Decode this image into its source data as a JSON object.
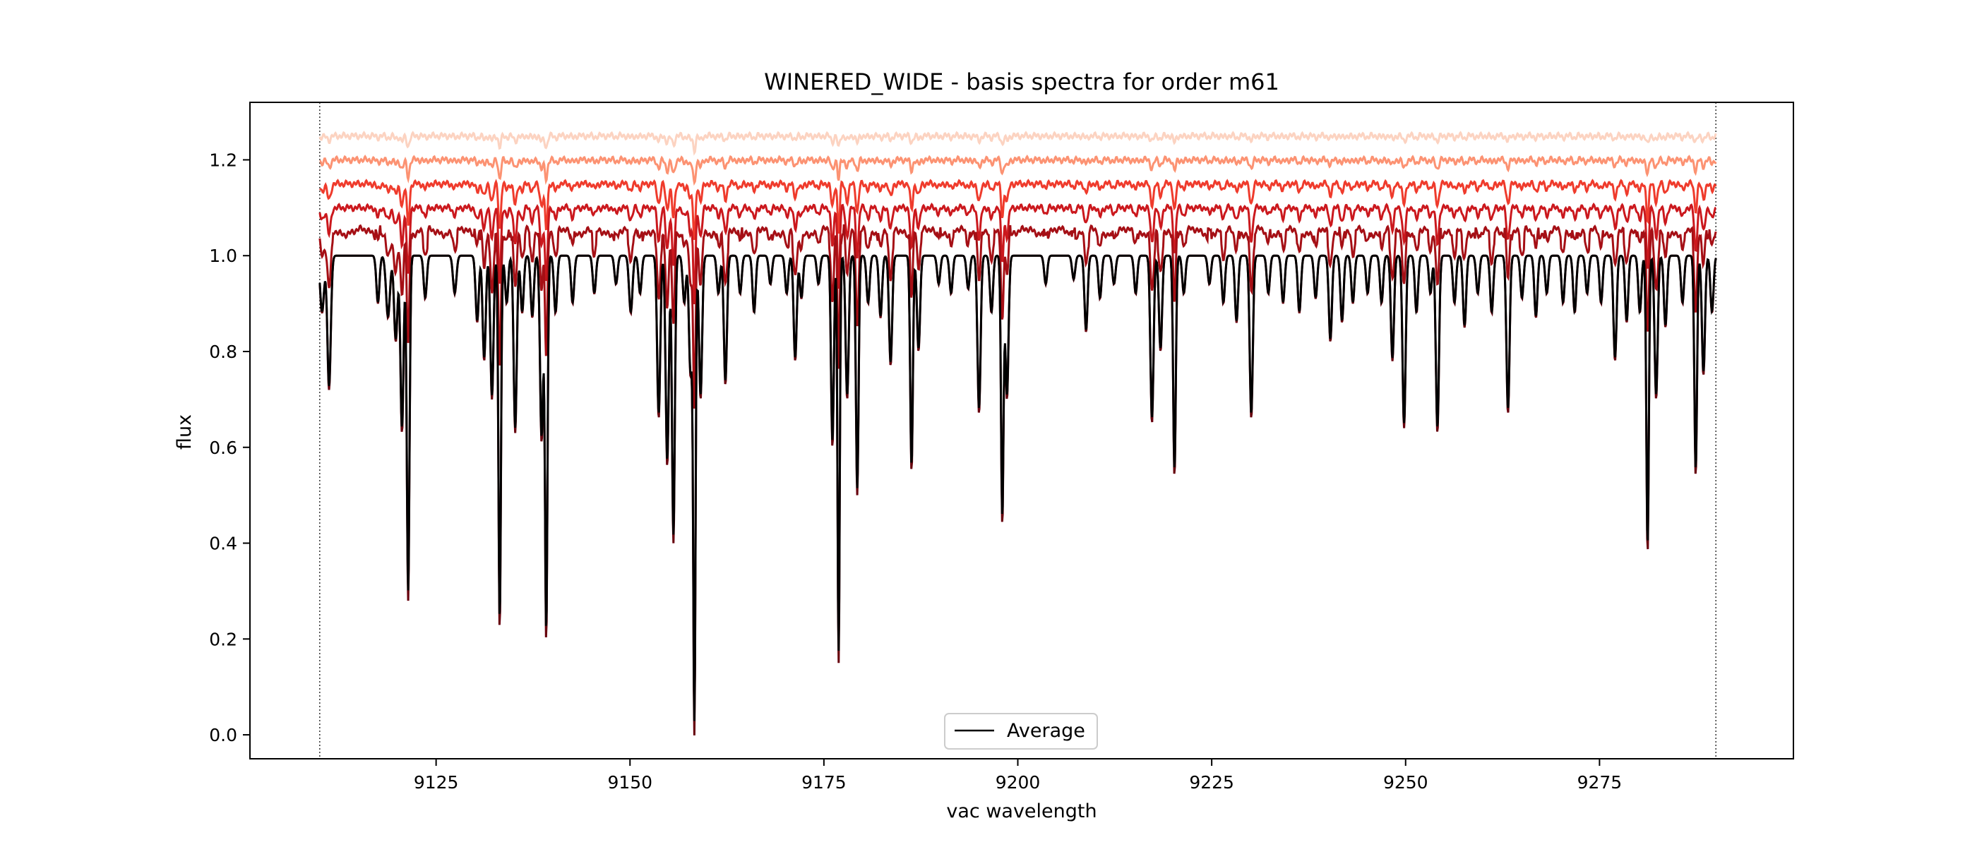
{
  "chart_data": {
    "type": "line",
    "title": "WINERED_WIDE - basis spectra for order m61",
    "xlabel": "vac wavelength",
    "ylabel": "flux",
    "xlim": [
      9101,
      9300
    ],
    "ylim": [
      -0.05,
      1.32
    ],
    "x_ticks": [
      9125,
      9150,
      9175,
      9200,
      9225,
      9250,
      9275
    ],
    "y_ticks": [
      0.0,
      0.2,
      0.4,
      0.6,
      0.8,
      1.0,
      1.2
    ],
    "x_tick_labels": [
      "9125",
      "9150",
      "9175",
      "9200",
      "9225",
      "9250",
      "9275"
    ],
    "y_tick_labels": [
      "0.0",
      "0.2",
      "0.4",
      "0.6",
      "0.8",
      "1.0",
      "1.2"
    ],
    "vertical_markers": [
      9110,
      9290
    ],
    "legend": {
      "placement": "lower center",
      "entries": [
        "Average"
      ]
    },
    "grid": false,
    "colormap": "Reds",
    "basis_offsets": [
      0.0,
      0.05,
      0.1,
      0.15,
      0.2,
      0.25
    ],
    "basis_colors": [
      "#67000d",
      "#a50f15",
      "#cb181d",
      "#ef3b2c",
      "#fc9272",
      "#fcd3c1"
    ],
    "basis_depth_scale": [
      1.0,
      0.35,
      0.2,
      0.12,
      0.05,
      0.03
    ],
    "average": {
      "name": "Average",
      "color": "#000000",
      "continuum": 1.0,
      "absorption_lines": [
        [
          9110.3,
          0.12,
          0.25
        ],
        [
          9111.2,
          0.28,
          0.22
        ],
        [
          9117.5,
          0.1,
          0.2
        ],
        [
          9118.8,
          0.13,
          0.25
        ],
        [
          9119.8,
          0.18,
          0.22
        ],
        [
          9120.6,
          0.37,
          0.2
        ],
        [
          9121.4,
          0.72,
          0.17
        ],
        [
          9123.6,
          0.09,
          0.2
        ],
        [
          9127.4,
          0.08,
          0.22
        ],
        [
          9130.3,
          0.14,
          0.2
        ],
        [
          9131.2,
          0.22,
          0.2
        ],
        [
          9132.2,
          0.3,
          0.2
        ],
        [
          9133.2,
          0.78,
          0.16
        ],
        [
          9134.1,
          0.1,
          0.2
        ],
        [
          9135.2,
          0.37,
          0.2
        ],
        [
          9136.1,
          0.12,
          0.2
        ],
        [
          9137.4,
          0.13,
          0.2
        ],
        [
          9138.6,
          0.39,
          0.2
        ],
        [
          9139.2,
          0.8,
          0.16
        ],
        [
          9140.4,
          0.12,
          0.2
        ],
        [
          9142.6,
          0.1,
          0.2
        ],
        [
          9145.4,
          0.08,
          0.2
        ],
        [
          9148.2,
          0.06,
          0.2
        ],
        [
          9150.1,
          0.12,
          0.22
        ],
        [
          9151.3,
          0.08,
          0.2
        ],
        [
          9153.7,
          0.34,
          0.2
        ],
        [
          9154.8,
          0.44,
          0.2
        ],
        [
          9155.6,
          0.6,
          0.18
        ],
        [
          9157.0,
          0.1,
          0.2
        ],
        [
          9157.8,
          0.25,
          0.2
        ],
        [
          9158.3,
          0.99,
          0.15
        ],
        [
          9159.1,
          0.3,
          0.2
        ],
        [
          9161.4,
          0.08,
          0.2
        ],
        [
          9162.3,
          0.27,
          0.2
        ],
        [
          9164.2,
          0.08,
          0.2
        ],
        [
          9166.0,
          0.12,
          0.2
        ],
        [
          9168.1,
          0.06,
          0.2
        ],
        [
          9170.2,
          0.08,
          0.2
        ],
        [
          9171.3,
          0.22,
          0.2
        ],
        [
          9172.1,
          0.09,
          0.2
        ],
        [
          9174.3,
          0.06,
          0.2
        ],
        [
          9176.1,
          0.4,
          0.18
        ],
        [
          9176.9,
          0.85,
          0.14
        ],
        [
          9178.0,
          0.3,
          0.2
        ],
        [
          9179.3,
          0.5,
          0.17
        ],
        [
          9180.7,
          0.1,
          0.2
        ],
        [
          9182.3,
          0.13,
          0.2
        ],
        [
          9183.6,
          0.23,
          0.2
        ],
        [
          9186.3,
          0.45,
          0.17
        ],
        [
          9187.2,
          0.2,
          0.2
        ],
        [
          9189.8,
          0.06,
          0.2
        ],
        [
          9191.4,
          0.08,
          0.2
        ],
        [
          9193.6,
          0.07,
          0.2
        ],
        [
          9195.0,
          0.33,
          0.2
        ],
        [
          9196.6,
          0.12,
          0.2
        ],
        [
          9198.0,
          0.56,
          0.16
        ],
        [
          9198.6,
          0.3,
          0.2
        ],
        [
          9203.6,
          0.06,
          0.2
        ],
        [
          9207.2,
          0.05,
          0.2
        ],
        [
          9208.8,
          0.16,
          0.2
        ],
        [
          9210.6,
          0.09,
          0.2
        ],
        [
          9212.4,
          0.06,
          0.2
        ],
        [
          9215.2,
          0.08,
          0.2
        ],
        [
          9217.3,
          0.35,
          0.2
        ],
        [
          9218.4,
          0.2,
          0.2
        ],
        [
          9220.2,
          0.46,
          0.17
        ],
        [
          9221.4,
          0.08,
          0.2
        ],
        [
          9224.7,
          0.06,
          0.2
        ],
        [
          9226.5,
          0.1,
          0.2
        ],
        [
          9228.2,
          0.14,
          0.2
        ],
        [
          9230.1,
          0.34,
          0.2
        ],
        [
          9232.3,
          0.08,
          0.2
        ],
        [
          9234.2,
          0.1,
          0.2
        ],
        [
          9236.3,
          0.12,
          0.2
        ],
        [
          9238.4,
          0.09,
          0.2
        ],
        [
          9240.3,
          0.18,
          0.2
        ],
        [
          9241.8,
          0.14,
          0.2
        ],
        [
          9243.2,
          0.1,
          0.2
        ],
        [
          9245.1,
          0.08,
          0.2
        ],
        [
          9246.9,
          0.1,
          0.2
        ],
        [
          9248.3,
          0.22,
          0.2
        ],
        [
          9249.8,
          0.36,
          0.2
        ],
        [
          9251.4,
          0.12,
          0.2
        ],
        [
          9253.2,
          0.08,
          0.2
        ],
        [
          9254.1,
          0.37,
          0.2
        ],
        [
          9256.3,
          0.1,
          0.2
        ],
        [
          9257.6,
          0.15,
          0.2
        ],
        [
          9259.3,
          0.08,
          0.2
        ],
        [
          9261.1,
          0.12,
          0.2
        ],
        [
          9263.2,
          0.33,
          0.2
        ],
        [
          9265.0,
          0.09,
          0.2
        ],
        [
          9266.8,
          0.13,
          0.2
        ],
        [
          9268.2,
          0.08,
          0.2
        ],
        [
          9270.3,
          0.1,
          0.2
        ],
        [
          9271.8,
          0.12,
          0.2
        ],
        [
          9273.4,
          0.08,
          0.2
        ],
        [
          9275.2,
          0.1,
          0.2
        ],
        [
          9277.0,
          0.22,
          0.2
        ],
        [
          9278.5,
          0.14,
          0.2
        ],
        [
          9280.2,
          0.12,
          0.2
        ],
        [
          9281.2,
          0.62,
          0.16
        ],
        [
          9282.3,
          0.3,
          0.2
        ],
        [
          9283.5,
          0.15,
          0.2
        ],
        [
          9285.7,
          0.1,
          0.2
        ],
        [
          9287.4,
          0.46,
          0.17
        ],
        [
          9288.4,
          0.25,
          0.2
        ],
        [
          9289.5,
          0.12,
          0.2
        ]
      ]
    }
  }
}
